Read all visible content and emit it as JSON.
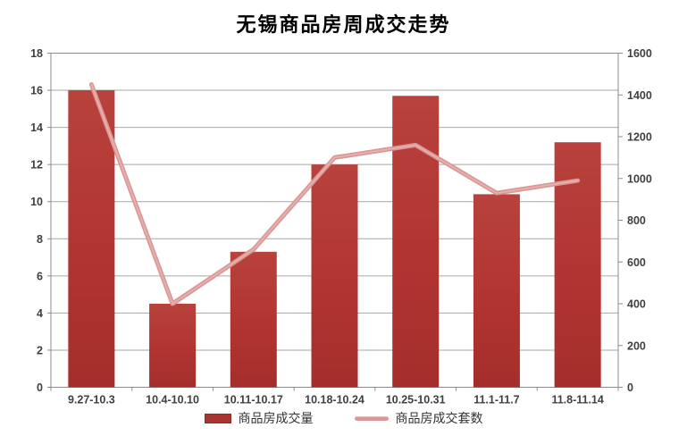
{
  "title": "无锡商品房周成交走势",
  "chart_data": {
    "type": "bar",
    "subtype": "bar+line combo, dual axis",
    "title": "无锡商品房周成交走势",
    "categories": [
      "9.27-10.3",
      "10.4-10.10",
      "10.11-10.17",
      "10.18-10.24",
      "10.25-10.31",
      "11.1-11.7",
      "11.8-11.14"
    ],
    "series": [
      {
        "name": "商品房成交量",
        "kind": "bar",
        "axis": "left",
        "color": "#b23431",
        "values": [
          16,
          4.5,
          7.3,
          12,
          15.7,
          10.4,
          13.2
        ]
      },
      {
        "name": "商品房成交套数",
        "kind": "line",
        "axis": "right",
        "color": "#d99694",
        "values": [
          1450,
          400,
          660,
          1100,
          1160,
          930,
          990
        ]
      }
    ],
    "left_axis": {
      "min": 0,
      "max": 18,
      "step": 2,
      "labels": [
        "0",
        "2",
        "4",
        "6",
        "8",
        "10",
        "12",
        "14",
        "16",
        "18"
      ]
    },
    "right_axis": {
      "min": 0,
      "max": 1600,
      "step": 200,
      "labels": [
        "0",
        "200",
        "400",
        "600",
        "800",
        "1000",
        "1200",
        "1400",
        "1600"
      ]
    },
    "grid": true,
    "legend_position": "bottom",
    "colors": {
      "bar_fill": "#b23431",
      "bar_edge": "#9d2e2a",
      "line_stroke": "#d99694",
      "line_highlight": "#e6b1ae",
      "gridline": "#a6a6a6",
      "axis_border": "#8c8c8c",
      "axis_text": "#3f3f3f",
      "background": "#ffffff"
    }
  },
  "legend": {
    "bar_label": "商品房成交量",
    "line_label": "商品房成交套数"
  }
}
